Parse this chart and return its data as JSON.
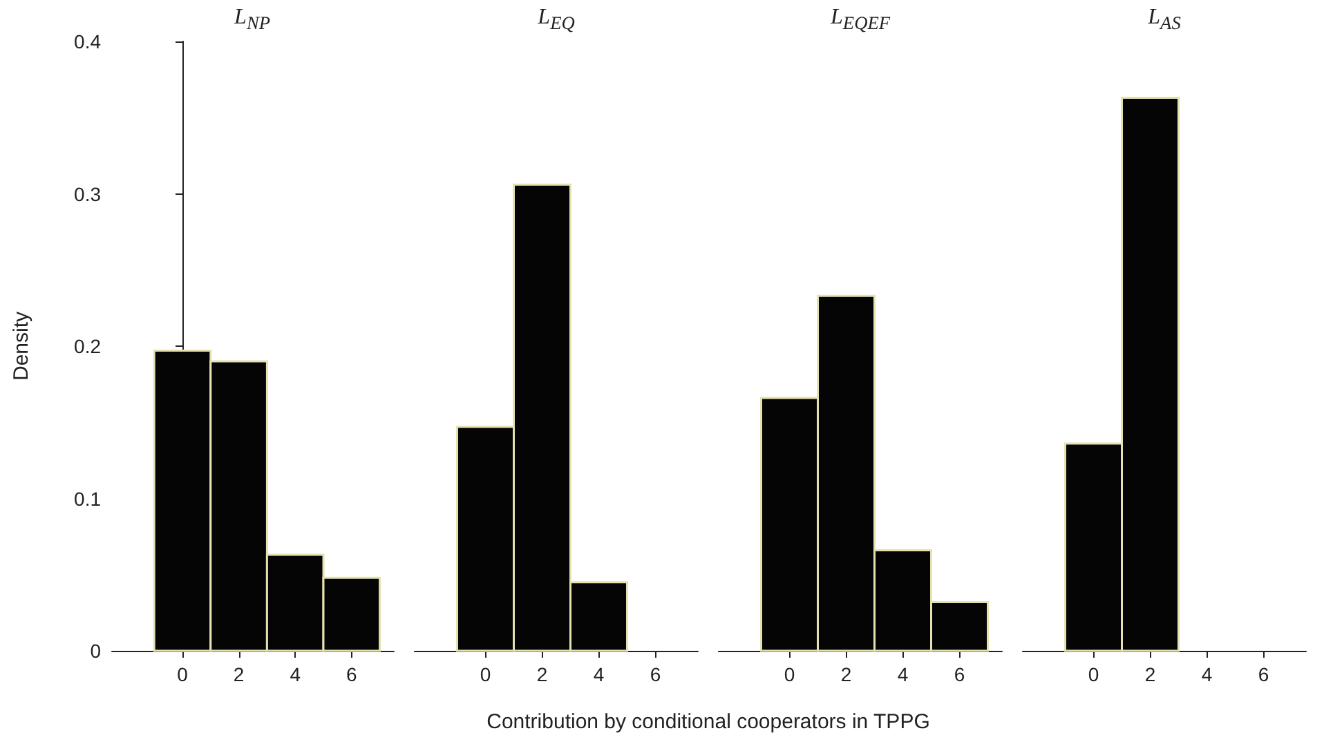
{
  "chart_data": [
    {
      "type": "histogram",
      "title": "L$_{NP}$",
      "ylabel": "Density",
      "xlabel": "Contribution by conditional cooperators in TPPG",
      "bins": [
        -1,
        1,
        3,
        5,
        7
      ],
      "values": [
        0.197,
        0.19,
        0.063,
        0.048
      ],
      "color": "#050505",
      "xlim": [
        -2.5,
        7.5
      ],
      "xticks": [
        0,
        2,
        4,
        6
      ],
      "ylim": [
        0,
        0.4
      ],
      "yticks": [
        0,
        0.1,
        0.2,
        0.3,
        0.4
      ]
    },
    {
      "type": "histogram",
      "title": "L$_{EQ}$",
      "bins": [
        -1,
        1,
        3,
        5,
        7
      ],
      "values": [
        0.147,
        0.306,
        0.045,
        0
      ],
      "color": "#050505",
      "xlim": [
        -2.5,
        7.5
      ],
      "xticks": [
        0,
        2,
        4,
        6
      ],
      "ylim": [
        0,
        0.4
      ],
      "tick_labels": "x"
    },
    {
      "type": "histogram",
      "title": "L$_{EQEF}$",
      "bins": [
        -1,
        1,
        3,
        5,
        7
      ],
      "values": [
        0.166,
        0.233,
        0.066,
        0.032
      ],
      "color": "#050505",
      "xlim": [
        -2.5,
        7.5
      ],
      "xticks": [
        0,
        2,
        4,
        6
      ],
      "ylim": [
        0,
        0.4
      ],
      "tick_labels": "x"
    },
    {
      "type": "histogram",
      "title": "L$_{AS}$",
      "bins": [
        -1,
        1,
        3,
        5,
        7
      ],
      "values": [
        0.136,
        0.363,
        0,
        0
      ],
      "color": "#050505",
      "xlim": [
        -2.5,
        7.5
      ],
      "xticks": [
        0,
        2,
        4,
        6
      ],
      "ylim": [
        0,
        0.4
      ],
      "tick_labels": "x"
    }
  ]
}
